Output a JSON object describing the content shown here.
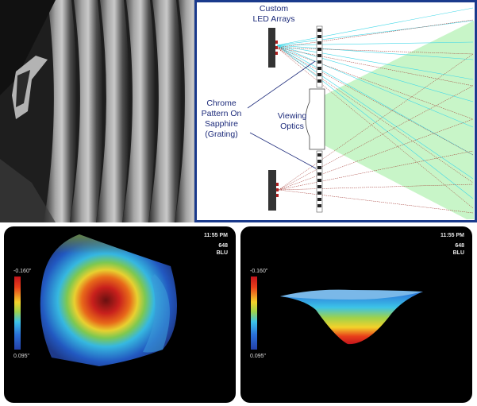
{
  "diagram": {
    "led_label": "Custom LED Arrays",
    "led_label_lines": [
      "Custom",
      "LED Arrays"
    ],
    "grating_label_lines": [
      "Chrome",
      "Pattern On",
      "Sapphire",
      "(Grating)"
    ],
    "optics_label_lines": [
      "Viewing",
      "Optics"
    ],
    "colors": {
      "border": "#1a3a8c",
      "text": "#1c2a7a",
      "cyan_ray": "#40d8e8",
      "red_ray": "#a0302a",
      "field": "#c8f5c8"
    }
  },
  "scan_left": {
    "time": "11:55 PM",
    "id": "648",
    "mode": "BLU",
    "scale_max": "-0.160\"",
    "scale_min": "0.095\""
  },
  "scan_right": {
    "time": "11:55 PM",
    "id": "648",
    "mode": "BLU",
    "scale_max": "-0.160\"",
    "scale_min": "0.095\""
  }
}
